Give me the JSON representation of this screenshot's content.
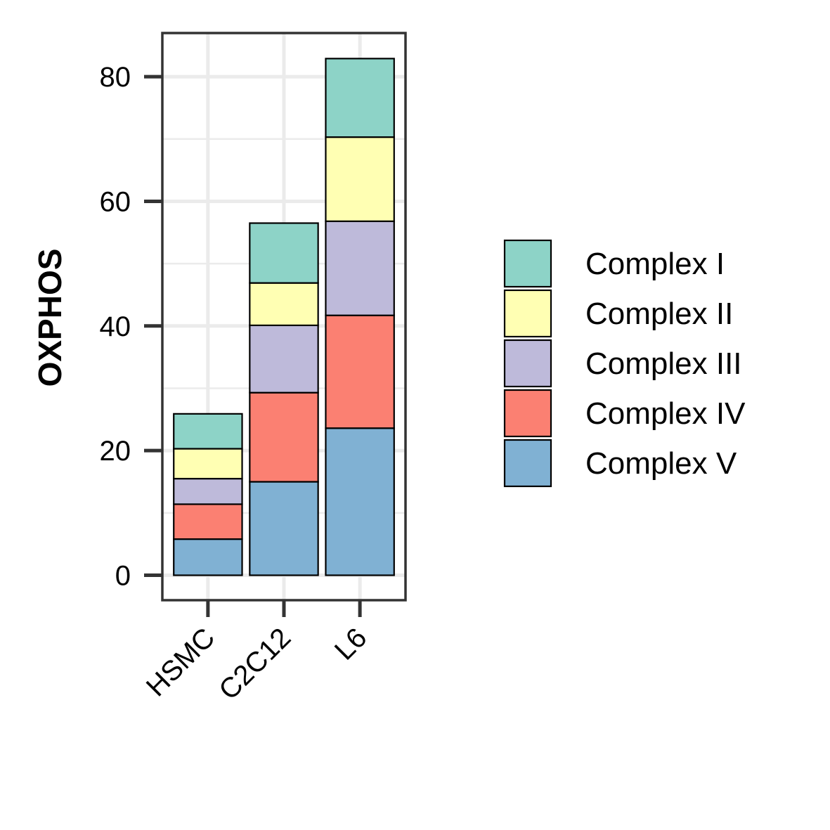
{
  "chart_data": {
    "type": "bar",
    "stacked": true,
    "title": "",
    "xlabel": "",
    "ylabel": "OXPHOS",
    "ylim": [
      -4,
      87
    ],
    "yticks": [
      0,
      20,
      40,
      60,
      80
    ],
    "grid": true,
    "legend_position": "right",
    "categories": [
      "HSMC",
      "C2C12",
      "L6"
    ],
    "series": [
      {
        "name": "Complex V",
        "color": "#80B1D3",
        "values": [
          5.8,
          15.0,
          23.6
        ]
      },
      {
        "name": "Complex IV",
        "color": "#FB8072",
        "values": [
          5.6,
          14.3,
          18.1
        ]
      },
      {
        "name": "Complex III",
        "color": "#BEBADA",
        "values": [
          4.1,
          10.8,
          15.1
        ]
      },
      {
        "name": "Complex II",
        "color": "#FFFFB3",
        "values": [
          4.8,
          6.8,
          13.5
        ]
      },
      {
        "name": "Complex I",
        "color": "#8DD3C7",
        "values": [
          5.6,
          9.6,
          12.6
        ]
      }
    ],
    "legend_order": [
      "Complex I",
      "Complex II",
      "Complex III",
      "Complex IV",
      "Complex V"
    ]
  }
}
